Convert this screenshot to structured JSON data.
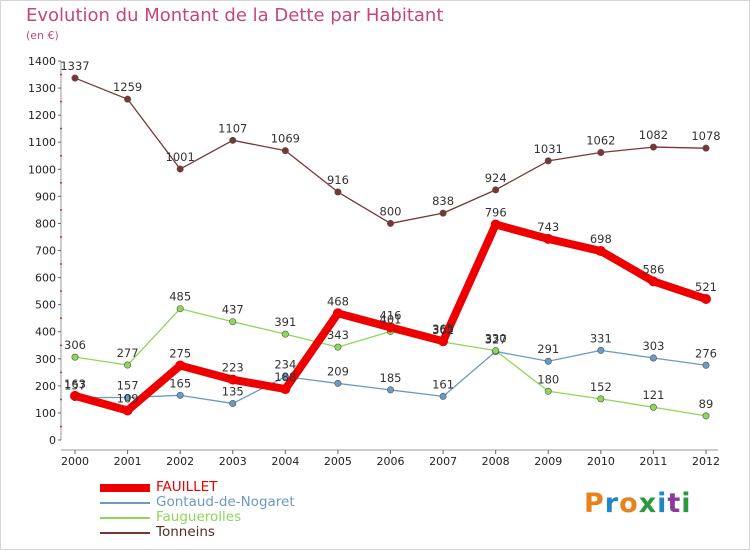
{
  "title": "Evolution du Montant de la Dette par Habitant",
  "subtitle": "(en €)",
  "logo": {
    "text": "Proxiti",
    "letter_colors": [
      "#e8821d",
      "#1e87c8",
      "#e8821d",
      "#2b9a3f",
      "#1e87c8",
      "#8a3a9a",
      "#2b9a3f"
    ]
  },
  "chart_data": {
    "type": "line",
    "title": "Evolution du Montant de la Dette par Habitant",
    "subtitle": "(en €)",
    "xlabel": "",
    "ylabel": "",
    "x": [
      "2000",
      "2001",
      "2002",
      "2003",
      "2004",
      "2005",
      "2006",
      "2007",
      "2008",
      "2009",
      "2010",
      "2011",
      "2012"
    ],
    "ylim": [
      0,
      1400
    ],
    "yticks": [
      0,
      100,
      200,
      300,
      400,
      500,
      600,
      700,
      800,
      900,
      1000,
      1100,
      1200,
      1300,
      1400
    ],
    "grid": false,
    "legend_position": "bottom-left",
    "series": [
      {
        "name": "FAUILLET",
        "color": "#ee0000",
        "emphasis": true,
        "values": [
          163,
          109,
          275,
          223,
          188,
          468,
          416,
          365,
          796,
          743,
          698,
          586,
          521
        ]
      },
      {
        "name": "Gontaud-de-Nogaret",
        "color": "#6b9ac4",
        "emphasis": false,
        "values": [
          157,
          157,
          165,
          135,
          234,
          209,
          185,
          161,
          327,
          291,
          331,
          303,
          276
        ]
      },
      {
        "name": "Fauguerolles",
        "color": "#8fd65a",
        "emphasis": false,
        "values": [
          306,
          277,
          485,
          437,
          391,
          343,
          401,
          362,
          330,
          180,
          152,
          121,
          89
        ]
      },
      {
        "name": "Tonneins",
        "color": "#7a3535",
        "emphasis": false,
        "values": [
          1337,
          1259,
          1001,
          1107,
          1069,
          916,
          800,
          838,
          924,
          1031,
          1062,
          1082,
          1078
        ]
      }
    ]
  }
}
